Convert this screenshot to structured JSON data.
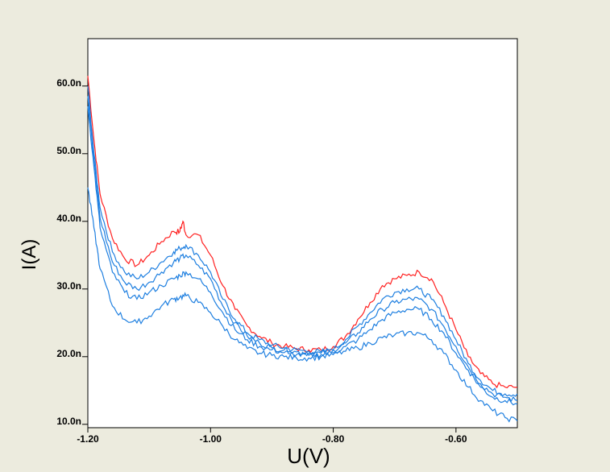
{
  "colors": {
    "background": "#ecebde",
    "plot_area": "#ffffff",
    "red_series": "#ff2020",
    "blue_series": "#1e7fe0"
  },
  "chart_data": {
    "type": "line",
    "xlabel": "U(V)",
    "ylabel": "I(A)",
    "xlim": [
      -1.2,
      -0.5
    ],
    "ylim": [
      9.5,
      67
    ],
    "x_ticks": [
      {
        "value": -1.2,
        "label": "-1.20"
      },
      {
        "value": -1.0,
        "label": "-1.00"
      },
      {
        "value": -0.8,
        "label": "-0.80"
      },
      {
        "value": -0.6,
        "label": "-0.60"
      }
    ],
    "y_ticks": [
      {
        "value": 10,
        "label": "10.0n"
      },
      {
        "value": 20,
        "label": "20.0n"
      },
      {
        "value": 30,
        "label": "30.0n"
      },
      {
        "value": 40,
        "label": "40.0n"
      },
      {
        "value": 50,
        "label": "50.0n"
      },
      {
        "value": 60,
        "label": "60.0n"
      }
    ],
    "grid": false,
    "legend": "none",
    "y_unit": "nA",
    "series": [
      {
        "color": "#ff2020",
        "x": [
          -1.2,
          -1.19,
          -1.18,
          -1.16,
          -1.14,
          -1.12,
          -1.1,
          -1.08,
          -1.06,
          -1.05,
          -1.045,
          -1.04,
          -1.02,
          -1.0,
          -0.98,
          -0.96,
          -0.94,
          -0.92,
          -0.9,
          -0.88,
          -0.86,
          -0.84,
          -0.82,
          -0.8,
          -0.78,
          -0.76,
          -0.74,
          -0.72,
          -0.7,
          -0.68,
          -0.66,
          -0.64,
          -0.62,
          -0.6,
          -0.58,
          -0.56,
          -0.54,
          -0.52,
          -0.5
        ],
        "y": [
          61.5,
          52,
          44,
          37.5,
          34.5,
          33.5,
          35,
          37,
          38.5,
          38.5,
          40,
          38,
          38,
          35,
          30.5,
          27,
          24.5,
          23,
          22,
          21.5,
          21.2,
          21,
          21,
          21.5,
          23,
          25.5,
          28,
          30.5,
          31.5,
          32,
          32.5,
          31.5,
          28,
          24,
          20,
          17.5,
          16,
          15.5,
          15.5
        ]
      },
      {
        "color": "#1e7fe0",
        "x": [
          -1.2,
          -1.19,
          -1.18,
          -1.16,
          -1.14,
          -1.12,
          -1.1,
          -1.08,
          -1.06,
          -1.05,
          -1.04,
          -1.02,
          -1.0,
          -0.98,
          -0.96,
          -0.94,
          -0.92,
          -0.9,
          -0.88,
          -0.86,
          -0.84,
          -0.82,
          -0.8,
          -0.78,
          -0.76,
          -0.74,
          -0.72,
          -0.7,
          -0.68,
          -0.66,
          -0.64,
          -0.62,
          -0.6,
          -0.58,
          -0.56,
          -0.54,
          -0.52,
          -0.5
        ],
        "y": [
          60,
          50,
          42,
          35.5,
          32.5,
          31.5,
          32.5,
          34,
          35.5,
          36,
          36.5,
          35,
          32.5,
          28.5,
          25.5,
          23.5,
          22.5,
          21.7,
          21.3,
          21,
          20.8,
          20.7,
          21,
          22.5,
          24.5,
          26.5,
          28.5,
          29.5,
          30,
          30,
          28.5,
          26,
          22.5,
          19,
          16.5,
          15,
          14.5,
          14.5
        ]
      },
      {
        "color": "#1e7fe0",
        "x": [
          -1.2,
          -1.19,
          -1.18,
          -1.16,
          -1.14,
          -1.12,
          -1.1,
          -1.08,
          -1.06,
          -1.05,
          -1.04,
          -1.02,
          -1.0,
          -0.98,
          -0.96,
          -0.94,
          -0.92,
          -0.9,
          -0.88,
          -0.86,
          -0.84,
          -0.82,
          -0.8,
          -0.78,
          -0.76,
          -0.74,
          -0.72,
          -0.7,
          -0.68,
          -0.66,
          -0.64,
          -0.62,
          -0.6,
          -0.58,
          -0.56,
          -0.54,
          -0.52,
          -0.5
        ],
        "y": [
          58.5,
          49,
          40.5,
          34,
          31,
          30,
          31,
          32.5,
          34,
          34.5,
          35,
          33.5,
          31.5,
          27.5,
          25,
          23,
          22,
          21.3,
          21,
          20.7,
          20.5,
          20.5,
          21,
          22,
          23.5,
          25.5,
          27,
          28,
          28.5,
          28.5,
          27,
          24.5,
          21.5,
          18.5,
          16,
          14.5,
          14,
          13.5
        ]
      },
      {
        "color": "#1e7fe0",
        "x": [
          -1.2,
          -1.19,
          -1.18,
          -1.16,
          -1.14,
          -1.12,
          -1.1,
          -1.08,
          -1.06,
          -1.05,
          -1.04,
          -1.02,
          -1.0,
          -0.98,
          -0.96,
          -0.94,
          -0.92,
          -0.9,
          -0.88,
          -0.86,
          -0.84,
          -0.82,
          -0.8,
          -0.78,
          -0.76,
          -0.74,
          -0.72,
          -0.7,
          -0.68,
          -0.66,
          -0.64,
          -0.62,
          -0.6,
          -0.58,
          -0.56,
          -0.54,
          -0.52,
          -0.5
        ],
        "y": [
          57,
          48,
          39,
          32.5,
          29.5,
          28.5,
          29.5,
          30.5,
          31.5,
          32,
          32.5,
          31.5,
          29.5,
          26.5,
          24,
          22.5,
          21.5,
          21,
          20.6,
          20.3,
          20.2,
          20.3,
          20.6,
          21.5,
          22.5,
          24,
          25.5,
          26.5,
          27,
          27,
          25.5,
          23.5,
          20.5,
          18,
          15.5,
          14,
          13.5,
          13
        ]
      },
      {
        "color": "#1e7fe0",
        "x": [
          -1.2,
          -1.19,
          -1.18,
          -1.16,
          -1.14,
          -1.12,
          -1.1,
          -1.08,
          -1.06,
          -1.05,
          -1.04,
          -1.02,
          -1.0,
          -0.98,
          -0.96,
          -0.94,
          -0.92,
          -0.9,
          -0.88,
          -0.86,
          -0.84,
          -0.82,
          -0.8,
          -0.78,
          -0.76,
          -0.74,
          -0.72,
          -0.7,
          -0.68,
          -0.66,
          -0.64,
          -0.62,
          -0.6,
          -0.58,
          -0.56,
          -0.54,
          -0.52,
          -0.5
        ],
        "y": [
          45,
          39,
          33,
          27.5,
          25.5,
          25,
          26,
          27.5,
          28.5,
          28.8,
          29,
          28,
          26.5,
          24.5,
          22.5,
          21.2,
          20.5,
          20.2,
          20,
          19.8,
          19.8,
          20,
          20.3,
          20.8,
          21.3,
          22,
          22.8,
          23.2,
          23.5,
          23.5,
          22.5,
          20.5,
          18,
          15.5,
          13.5,
          12,
          11,
          10.5
        ]
      }
    ]
  }
}
